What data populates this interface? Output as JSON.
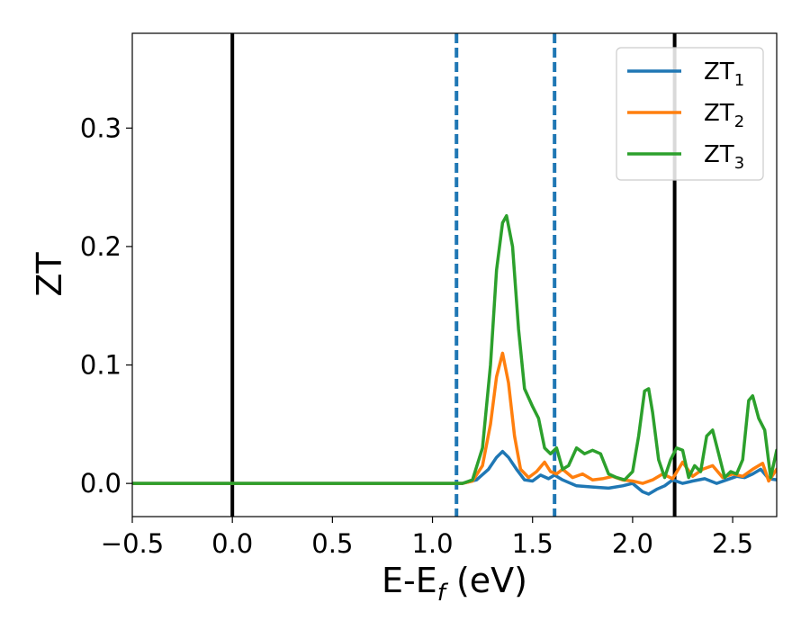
{
  "chart_data": {
    "type": "line",
    "title": "",
    "xlabel": {
      "main": "E-E",
      "sub": "f",
      "rest": " (eV)"
    },
    "ylabel": "ZT",
    "xlim": [
      -0.5,
      2.72
    ],
    "ylim": [
      -0.028,
      0.38
    ],
    "xticks": [
      -0.5,
      0.0,
      0.5,
      1.0,
      1.5,
      2.0,
      2.5
    ],
    "xtick_labels": [
      "−0.5",
      "0.0",
      "0.5",
      "1.0",
      "1.5",
      "2.0",
      "2.5"
    ],
    "yticks": [
      0.0,
      0.1,
      0.2,
      0.3
    ],
    "ytick_labels": [
      "0.0",
      "0.1",
      "0.2",
      "0.3"
    ],
    "grid": false,
    "legend_position": "top-right",
    "vlines": [
      {
        "x": 0.0,
        "style": "solid",
        "color": "#000000"
      },
      {
        "x": 2.21,
        "style": "solid",
        "color": "#000000"
      },
      {
        "x": 1.12,
        "style": "dashed",
        "color": "#1f77b4"
      },
      {
        "x": 1.61,
        "style": "dashed",
        "color": "#1f77b4"
      }
    ],
    "series": [
      {
        "name": "ZT",
        "sub": "1",
        "color": "#1f77b4",
        "x": [
          -0.5,
          1.0,
          1.15,
          1.22,
          1.28,
          1.32,
          1.35,
          1.38,
          1.42,
          1.46,
          1.5,
          1.54,
          1.58,
          1.61,
          1.65,
          1.72,
          1.8,
          1.88,
          1.95,
          2.0,
          2.05,
          2.08,
          2.12,
          2.16,
          2.2,
          2.25,
          2.3,
          2.36,
          2.42,
          2.47,
          2.52,
          2.56,
          2.6,
          2.64,
          2.68,
          2.72
        ],
        "y": [
          0,
          0,
          0,
          0.003,
          0.012,
          0.022,
          0.027,
          0.022,
          0.012,
          0.003,
          0.002,
          0.007,
          0.004,
          0.007,
          0.003,
          -0.002,
          -0.003,
          -0.004,
          -0.002,
          0.0,
          -0.007,
          -0.009,
          -0.005,
          -0.002,
          0.003,
          0.0,
          0.002,
          0.004,
          0.0,
          0.003,
          0.006,
          0.005,
          0.008,
          0.012,
          0.004,
          0.003
        ]
      },
      {
        "name": "ZT",
        "sub": "2",
        "color": "#ff7f0e",
        "x": [
          -0.5,
          1.0,
          1.15,
          1.2,
          1.25,
          1.29,
          1.32,
          1.35,
          1.38,
          1.41,
          1.44,
          1.48,
          1.52,
          1.56,
          1.59,
          1.62,
          1.65,
          1.7,
          1.75,
          1.8,
          1.85,
          1.9,
          1.95,
          2.0,
          2.05,
          2.1,
          2.15,
          2.2,
          2.25,
          2.3,
          2.35,
          2.4,
          2.45,
          2.5,
          2.55,
          2.6,
          2.65,
          2.68,
          2.72
        ],
        "y": [
          0,
          0,
          0,
          0.002,
          0.015,
          0.05,
          0.09,
          0.11,
          0.085,
          0.04,
          0.012,
          0.005,
          0.01,
          0.018,
          0.01,
          0.008,
          0.012,
          0.005,
          0.008,
          0.003,
          0.004,
          0.006,
          0.003,
          0.002,
          0.0,
          0.003,
          0.008,
          0.004,
          0.018,
          0.006,
          0.012,
          0.015,
          0.005,
          0.008,
          0.006,
          0.012,
          0.017,
          0.002,
          0.012
        ]
      },
      {
        "name": "ZT",
        "sub": "3",
        "color": "#2ca02c",
        "x": [
          -0.5,
          1.0,
          1.15,
          1.2,
          1.25,
          1.29,
          1.32,
          1.35,
          1.37,
          1.4,
          1.43,
          1.46,
          1.5,
          1.53,
          1.56,
          1.59,
          1.62,
          1.65,
          1.68,
          1.72,
          1.76,
          1.8,
          1.84,
          1.88,
          1.92,
          1.96,
          2.0,
          2.03,
          2.06,
          2.08,
          2.1,
          2.13,
          2.16,
          2.19,
          2.22,
          2.25,
          2.28,
          2.31,
          2.34,
          2.37,
          2.4,
          2.43,
          2.46,
          2.49,
          2.52,
          2.55,
          2.58,
          2.6,
          2.63,
          2.66,
          2.69,
          2.72
        ],
        "y": [
          0,
          0,
          0,
          0.003,
          0.03,
          0.1,
          0.18,
          0.22,
          0.226,
          0.2,
          0.13,
          0.08,
          0.065,
          0.055,
          0.03,
          0.025,
          0.03,
          0.012,
          0.015,
          0.03,
          0.025,
          0.028,
          0.025,
          0.008,
          0.005,
          0.003,
          0.01,
          0.04,
          0.078,
          0.08,
          0.06,
          0.02,
          0.005,
          0.02,
          0.03,
          0.028,
          0.005,
          0.015,
          0.01,
          0.04,
          0.045,
          0.025,
          0.005,
          0.01,
          0.008,
          0.02,
          0.07,
          0.074,
          0.055,
          0.045,
          0.005,
          0.028
        ]
      }
    ]
  }
}
